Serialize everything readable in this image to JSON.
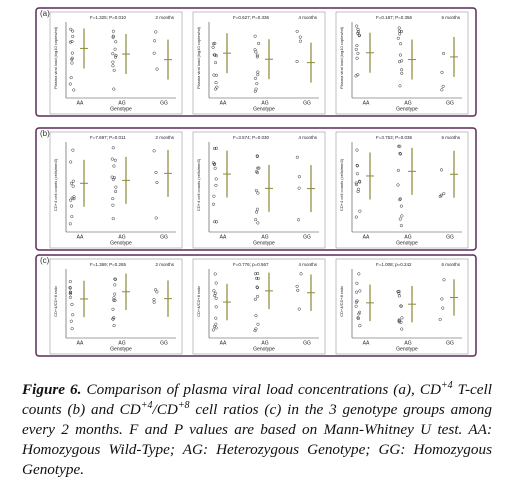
{
  "figure": {
    "panels": [
      {
        "label": "(a)",
        "ylabel": "Plasma viral load (log10 copies/ml)",
        "xlabel": "Genotype",
        "categories": [
          "AA",
          "AG",
          "GG"
        ],
        "plots": [
          {
            "stat": "F=1.325; P=0.010",
            "period": "2 months"
          },
          {
            "stat": "F=0.627; P=0.336",
            "period": "4 months"
          },
          {
            "stat": "F=0.187; P=0.356",
            "period": "6 months"
          }
        ]
      },
      {
        "label": "(b)",
        "ylabel": "CD+4 cell counts (cells/mm3)",
        "xlabel": "Genotype",
        "categories": [
          "AA",
          "AG",
          "GG"
        ],
        "plots": [
          {
            "stat": "F=7.697; P=0.011",
            "period": "2 months"
          },
          {
            "stat": "F=3.574; P=0.030",
            "period": "4 months"
          },
          {
            "stat": "F=3.763; P=0.036",
            "period": "6 months"
          }
        ]
      },
      {
        "label": "(c)",
        "ylabel": "CD+4/CD+8 ratio",
        "xlabel": "Genotype",
        "categories": [
          "AA",
          "AG",
          "GG"
        ],
        "plots": [
          {
            "stat": "F=1.369; P=0.265",
            "period": "2 months"
          },
          {
            "stat": "F=0.776; p=0.567",
            "period": "4 months"
          },
          {
            "stat": "F=1.008; p=0.242",
            "period": "6 months"
          }
        ]
      }
    ],
    "caption": {
      "label": "Figure 6.",
      "runs": [
        "Comparison of plasma viral load concentrations (a), CD",
        "+4",
        " T-cell counts (b) and CD",
        "+4",
        "/CD",
        "+8",
        " cell ratios (c) in the 3 genotype groups among every 2 months. F and P values are based on Mann-Whitney U test. AA: Homozygous Wild-Type; AG: Heterozygous Genotype; GG: Homozygous Genotype."
      ]
    }
  }
}
